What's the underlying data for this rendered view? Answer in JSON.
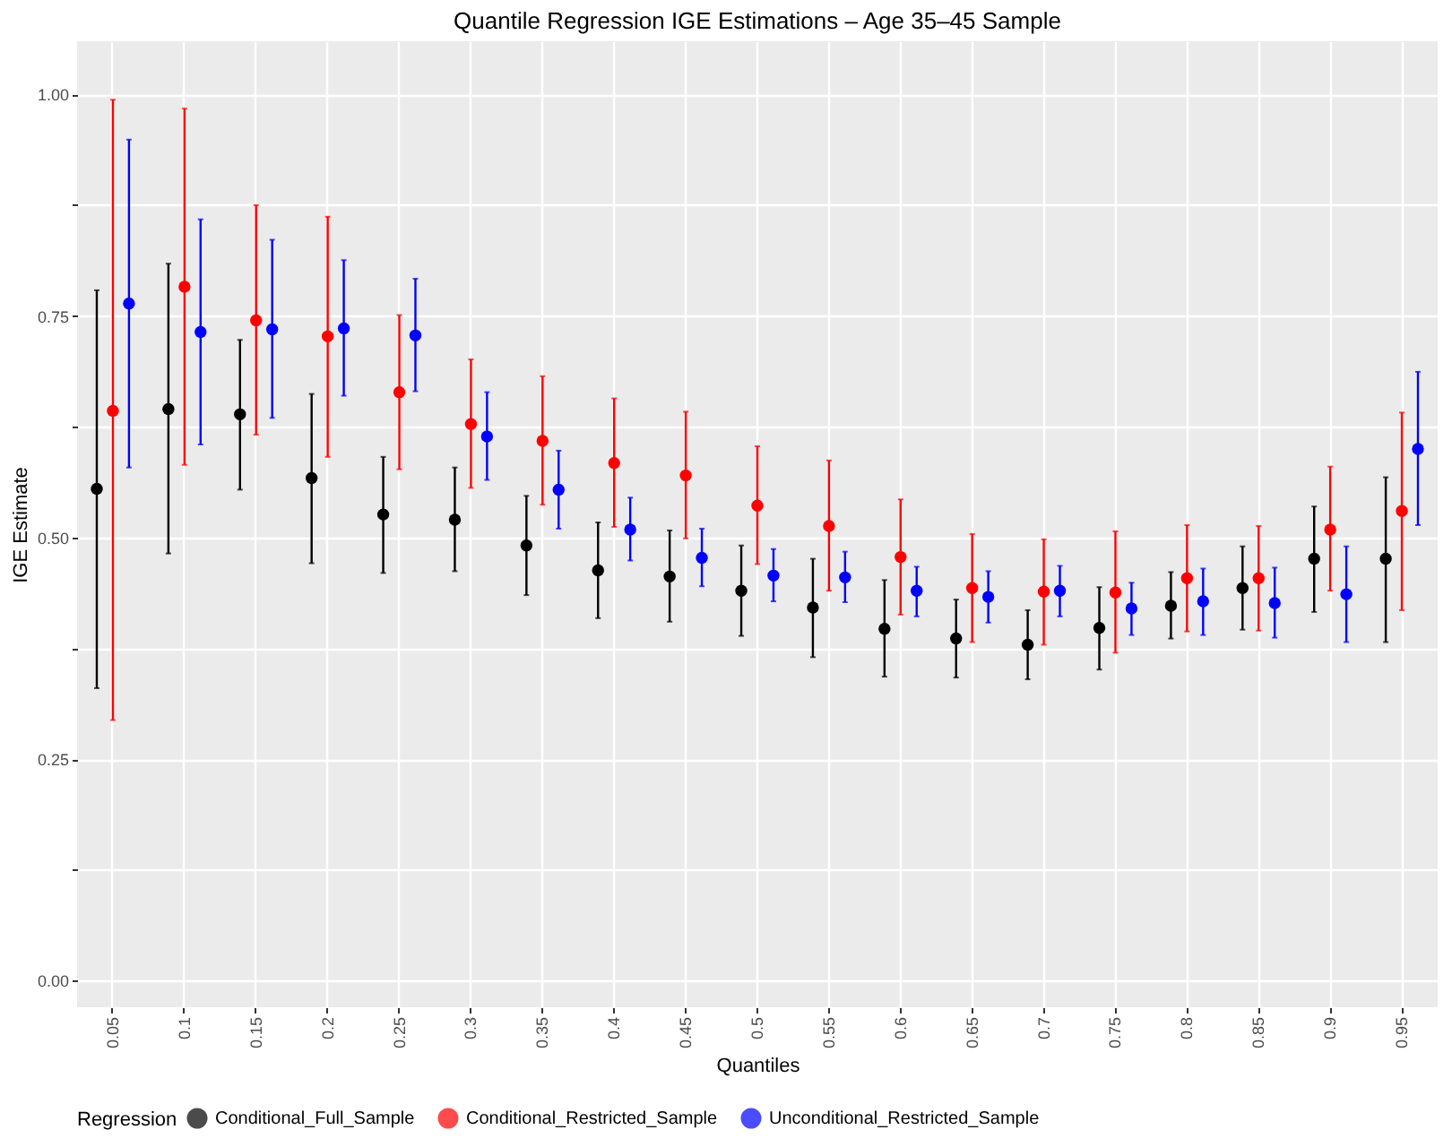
{
  "chart_data": {
    "type": "scatter",
    "title": "Quantile Regression IGE Estimations – Age 35–45 Sample",
    "xlabel": "Quantiles",
    "ylabel": "IGE Estimate",
    "legend_title": "Regression",
    "legend": "bottom",
    "grid": true,
    "marker": "circle",
    "categories": [
      "0.05",
      "0.1",
      "0.15",
      "0.2",
      "0.25",
      "0.3",
      "0.35",
      "0.4",
      "0.45",
      "0.5",
      "0.55",
      "0.6",
      "0.65",
      "0.7",
      "0.75",
      "0.8",
      "0.85",
      "0.9",
      "0.95"
    ],
    "ylim": [
      -0.03,
      1.06
    ],
    "yticks": [
      {
        "value": 0,
        "label": "0.00"
      },
      {
        "value": 0.125,
        "label": null
      },
      {
        "value": 0.25,
        "label": "0.25"
      },
      {
        "value": 0.375,
        "label": null
      },
      {
        "value": 0.5,
        "label": "0.50"
      },
      {
        "value": 0.625,
        "label": null
      },
      {
        "value": 0.75,
        "label": "0.75"
      },
      {
        "value": 0.875,
        "label": null
      },
      {
        "value": 1,
        "label": "1.00"
      }
    ],
    "series": [
      {
        "name": "Conditional_Full_Sample",
        "color": "#000000",
        "values": [
          0.555,
          0.645,
          0.639,
          0.567,
          0.526,
          0.52,
          0.491,
          0.463,
          0.456,
          0.44,
          0.421,
          0.397,
          0.386,
          0.379,
          0.398,
          0.423,
          0.443,
          0.476,
          0.476
        ],
        "errors": [
          [
            0.33,
            0.779
          ],
          [
            0.482,
            0.809
          ],
          [
            0.554,
            0.723
          ],
          [
            0.471,
            0.662
          ],
          [
            0.46,
            0.591
          ],
          [
            0.462,
            0.579
          ],
          [
            0.435,
            0.547
          ],
          [
            0.409,
            0.517
          ],
          [
            0.405,
            0.508
          ],
          [
            0.389,
            0.491
          ],
          [
            0.365,
            0.476
          ],
          [
            0.343,
            0.452
          ],
          [
            0.342,
            0.43
          ],
          [
            0.34,
            0.418
          ],
          [
            0.351,
            0.444
          ],
          [
            0.386,
            0.461
          ],
          [
            0.396,
            0.49
          ],
          [
            0.416,
            0.535
          ],
          [
            0.382,
            0.568
          ]
        ]
      },
      {
        "name": "Conditional_Restricted_Sample",
        "color": "#ff0000",
        "values": [
          0.643,
          0.783,
          0.745,
          0.727,
          0.664,
          0.628,
          0.609,
          0.584,
          0.57,
          0.536,
          0.513,
          0.478,
          0.443,
          0.439,
          0.438,
          0.454,
          0.454,
          0.509,
          0.53
        ],
        "errors": [
          [
            0.294,
            0.994
          ],
          [
            0.582,
            0.984
          ],
          [
            0.616,
            0.875
          ],
          [
            0.591,
            0.862
          ],
          [
            0.577,
            0.751
          ],
          [
            0.556,
            0.701
          ],
          [
            0.537,
            0.682
          ],
          [
            0.512,
            0.657
          ],
          [
            0.499,
            0.642
          ],
          [
            0.47,
            0.603
          ],
          [
            0.44,
            0.587
          ],
          [
            0.413,
            0.543
          ],
          [
            0.382,
            0.504
          ],
          [
            0.379,
            0.498
          ],
          [
            0.37,
            0.507
          ],
          [
            0.394,
            0.514
          ],
          [
            0.395,
            0.513
          ],
          [
            0.44,
            0.58
          ],
          [
            0.418,
            0.641
          ]
        ]
      },
      {
        "name": "Unconditional_Restricted_Sample",
        "color": "#0000ff",
        "values": [
          0.764,
          0.732,
          0.735,
          0.736,
          0.728,
          0.614,
          0.554,
          0.509,
          0.477,
          0.457,
          0.455,
          0.44,
          0.433,
          0.44,
          0.42,
          0.428,
          0.426,
          0.436,
          0.6
        ],
        "errors": [
          [
            0.579,
            0.949
          ],
          [
            0.605,
            0.859
          ],
          [
            0.635,
            0.836
          ],
          [
            0.66,
            0.813
          ],
          [
            0.665,
            0.792
          ],
          [
            0.565,
            0.664
          ],
          [
            0.51,
            0.598
          ],
          [
            0.474,
            0.545
          ],
          [
            0.445,
            0.51
          ],
          [
            0.428,
            0.487
          ],
          [
            0.427,
            0.484
          ],
          [
            0.411,
            0.467
          ],
          [
            0.404,
            0.462
          ],
          [
            0.411,
            0.468
          ],
          [
            0.39,
            0.449
          ],
          [
            0.39,
            0.465
          ],
          [
            0.387,
            0.466
          ],
          [
            0.382,
            0.49
          ],
          [
            0.514,
            0.687
          ]
        ]
      }
    ]
  }
}
